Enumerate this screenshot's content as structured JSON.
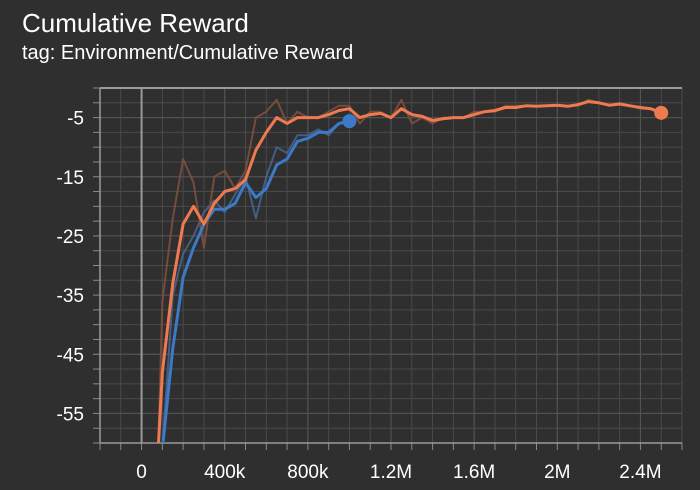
{
  "chart_data": {
    "type": "line",
    "title": "Cumulative Reward",
    "subtitle": "tag: Environment/Cumulative Reward",
    "xlabel": "",
    "ylabel": "",
    "xlim": [
      -200000,
      2600000
    ],
    "ylim": [
      -60,
      0
    ],
    "x_ticks": [
      0,
      400000,
      800000,
      1200000,
      1600000,
      2000000,
      2400000
    ],
    "x_tick_labels": [
      "0",
      "400k",
      "800k",
      "1.2M",
      "1.6M",
      "2M",
      "2.4M"
    ],
    "y_ticks": [
      -5,
      -15,
      -25,
      -35,
      -45,
      -55
    ],
    "y_tick_labels": [
      "-5",
      "-15",
      "-25",
      "-35",
      "-45",
      "-55"
    ],
    "grid": true,
    "legend": "none",
    "series": [
      {
        "color": "#3b7ac7",
        "raw_color": "#4a6590",
        "x": [
          100000,
          150000,
          200000,
          250000,
          300000,
          350000,
          400000,
          450000,
          500000,
          550000,
          600000,
          650000,
          700000,
          750000,
          800000,
          850000,
          900000,
          950000,
          1000000
        ],
        "values": [
          -61,
          -44,
          -32,
          -27,
          -23,
          -20.5,
          -20.5,
          -19.5,
          -16,
          -18.5,
          -17,
          -13,
          -12,
          -9,
          -8.5,
          -7.5,
          -7.5,
          -6,
          -5.6
        ],
        "raw_values": [
          -61,
          -35,
          -28,
          -25,
          -21,
          -19,
          -21,
          -18,
          -15,
          -22,
          -15,
          -10,
          -11,
          -8,
          -8,
          -7,
          -8,
          -6,
          -5.5
        ]
      },
      {
        "color": "#ef7a50",
        "raw_color": "#805040",
        "x": [
          80000,
          100000,
          150000,
          200000,
          250000,
          300000,
          350000,
          400000,
          450000,
          500000,
          550000,
          600000,
          650000,
          700000,
          750000,
          800000,
          850000,
          900000,
          950000,
          1000000,
          1050000,
          1100000,
          1150000,
          1200000,
          1250000,
          1300000,
          1350000,
          1400000,
          1450000,
          1500000,
          1550000,
          1600000,
          1650000,
          1700000,
          1750000,
          1800000,
          1850000,
          1900000,
          1950000,
          2000000,
          2050000,
          2100000,
          2150000,
          2200000,
          2250000,
          2300000,
          2350000,
          2400000,
          2450000,
          2500000
        ],
        "values": [
          -61,
          -48,
          -33,
          -23,
          -20,
          -23,
          -19.5,
          -17.5,
          -17,
          -15.5,
          -10.5,
          -7.5,
          -5,
          -6,
          -5,
          -5,
          -5,
          -4.5,
          -3.8,
          -3.5,
          -5,
          -4.5,
          -4.3,
          -5,
          -3.5,
          -4.5,
          -4.8,
          -5.5,
          -5.2,
          -5,
          -5,
          -4.5,
          -4,
          -3.8,
          -3.3,
          -3.3,
          -3,
          -3.1,
          -3,
          -2.9,
          -3.1,
          -2.8,
          -2.3,
          -2.5,
          -2.9,
          -2.7,
          -3.0,
          -3.3,
          -3.5,
          -4.2
        ],
        "raw_values": [
          -61,
          -36,
          -22,
          -12,
          -16,
          -27,
          -15,
          -14,
          -17,
          -14,
          -5,
          -4,
          -2,
          -6,
          -4,
          -5,
          -5,
          -4,
          -3,
          -3,
          -6,
          -4,
          -4,
          -5,
          -2,
          -6,
          -5,
          -6,
          -5,
          -5,
          -5,
          -4,
          -4,
          -4,
          -3,
          -3,
          -3,
          -3,
          -3,
          -3,
          -3,
          -3,
          -2,
          -2.5,
          -3,
          -2.5,
          -3,
          -3.5,
          -3.5,
          -4.2
        ]
      }
    ]
  }
}
